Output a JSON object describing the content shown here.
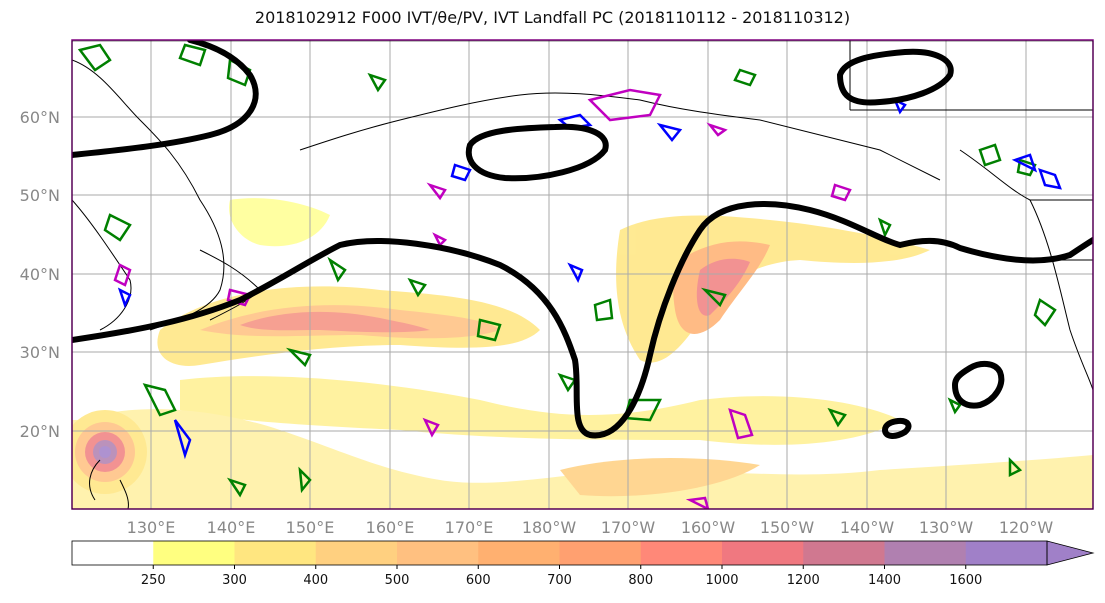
{
  "title": "2018102912 F000 IVT/θe/PV, IVT Landfall PC (2018110112 - 2018110312)",
  "latitudes": [
    "60°N",
    "50°N",
    "40°N",
    "30°N",
    "20°N"
  ],
  "longitudes": [
    "130°E",
    "140°E",
    "150°E",
    "160°E",
    "170°E",
    "180°W",
    "170°W",
    "160°W",
    "150°W",
    "140°W",
    "130°W",
    "120°W"
  ],
  "colorbar": {
    "ticks": [
      "250",
      "300",
      "400",
      "500",
      "600",
      "700",
      "800",
      "1000",
      "1200",
      "1400",
      "1600"
    ],
    "colors": [
      "#ffffff",
      "#ffff80",
      "#ffe680",
      "#ffd080",
      "#ffc080",
      "#ffb070",
      "#ffa070",
      "#ff8878",
      "#f07880",
      "#d07890",
      "#b080b0",
      "#a080c8"
    ]
  },
  "colors": {
    "theta_contour": "#008000",
    "pv_blue": "#0000ff",
    "pv_magenta": "#c000c0",
    "landfall_pc": "#000000",
    "coast": "#000000",
    "grid": "#aaaaaa"
  }
}
